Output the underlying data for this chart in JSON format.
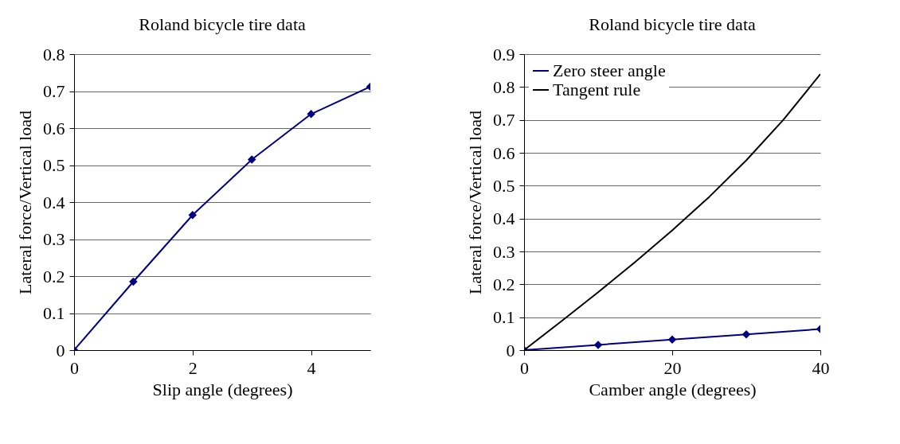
{
  "chart_data": [
    {
      "type": "line",
      "title": "Roland bicycle tire data",
      "xlabel": "Slip angle (degrees)",
      "ylabel": "Lateral force/Vertical load",
      "x": [
        0,
        1,
        2,
        3,
        4,
        5
      ],
      "xlim": [
        0,
        5
      ],
      "xticks": [
        0,
        2,
        4
      ],
      "ylim": [
        0,
        0.8
      ],
      "yticks": [
        0,
        0.1,
        0.2,
        0.3,
        0.4,
        0.5,
        0.6,
        0.7,
        0.8
      ],
      "grid": "y",
      "marker": "diamond",
      "series": [
        {
          "color": "#000080",
          "values": [
            0,
            0.185,
            0.365,
            0.515,
            0.638,
            0.712
          ]
        }
      ]
    },
    {
      "type": "line",
      "title": "Roland bicycle tire data",
      "xlabel": "Camber angle (degrees)",
      "ylabel": "Lateral force/Vertical load",
      "xlim": [
        0,
        40
      ],
      "xticks": [
        0,
        20,
        40
      ],
      "ylim": [
        0,
        0.9
      ],
      "yticks": [
        0,
        0.1,
        0.2,
        0.3,
        0.4,
        0.5,
        0.6,
        0.7,
        0.8,
        0.9
      ],
      "grid": "y",
      "legend": "top left",
      "series": [
        {
          "name": "Zero steer angle",
          "color": "#000080",
          "marker": "diamond",
          "x": [
            0,
            10,
            20,
            30,
            40
          ],
          "values": [
            0,
            0.016,
            0.032,
            0.048,
            0.064
          ]
        },
        {
          "name": "Tangent rule",
          "color": "#000000",
          "marker": "none",
          "x": [
            0,
            5,
            10,
            15,
            20,
            25,
            30,
            35,
            40
          ],
          "values": [
            0,
            0.087,
            0.176,
            0.268,
            0.364,
            0.466,
            0.577,
            0.7,
            0.839
          ]
        }
      ]
    }
  ]
}
